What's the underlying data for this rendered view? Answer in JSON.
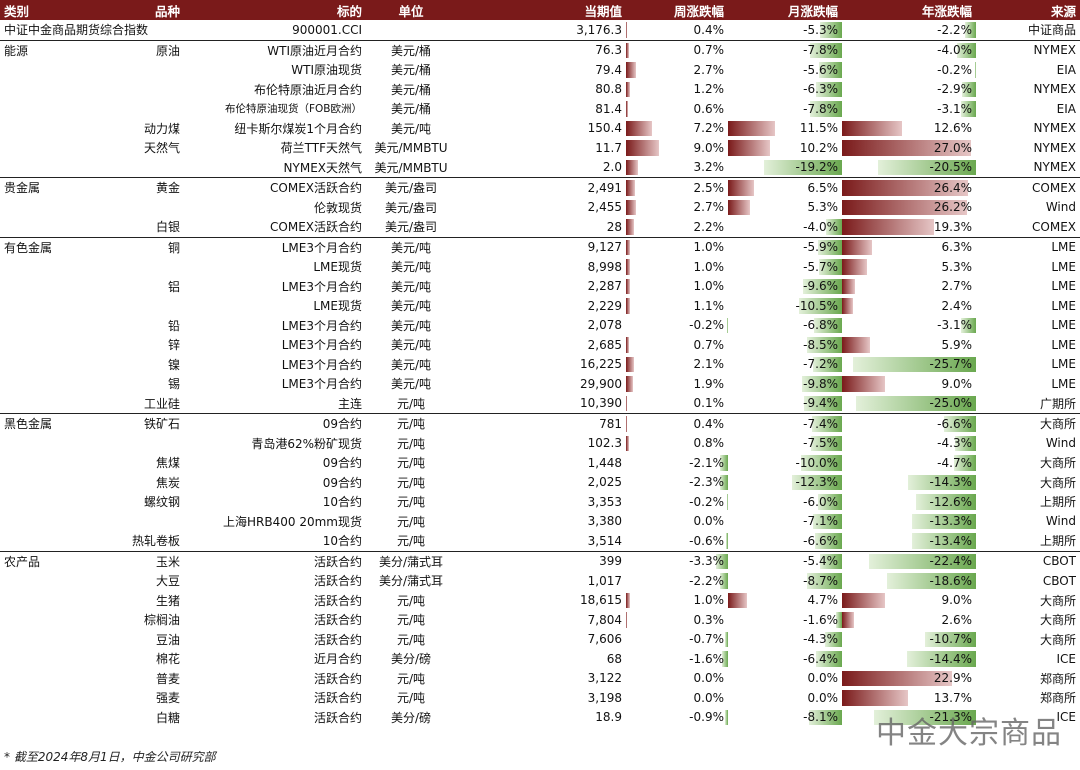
{
  "headers": {
    "category": "类别",
    "variety": "品种",
    "instrument": "标的",
    "unit": "单位",
    "current": "当期值",
    "weekly": "周涨跌幅",
    "monthly": "月涨跌幅",
    "yearly": "年涨跌幅",
    "source": "来源"
  },
  "colors": {
    "header_bg": "#7a1a1a",
    "positive_bar": "#7a1a1a",
    "negative_bar": "#6aa84f"
  },
  "rows": [
    {
      "cat": "中证中金商品期货综合指数",
      "var": "",
      "inst": "900001.CCI",
      "unit": "",
      "val": "3,176.3",
      "w": "0.4%",
      "m": "-5.3%",
      "y": "-2.2%",
      "src": "中证商品",
      "wn": 0.4,
      "mn": -5.3,
      "yn": -2.2
    },
    {
      "cat": "能源",
      "var": "原油",
      "inst": "WTI原油近月合约",
      "unit": "美元/桶",
      "val": "76.3",
      "w": "0.7%",
      "m": "-7.8%",
      "y": "-4.0%",
      "src": "NYMEX",
      "wn": 0.7,
      "mn": -7.8,
      "yn": -4.0
    },
    {
      "cat": "",
      "var": "",
      "inst": "WTI原油现货",
      "unit": "美元/桶",
      "val": "79.4",
      "w": "2.7%",
      "m": "-5.6%",
      "y": "-0.2%",
      "src": "EIA",
      "wn": 2.7,
      "mn": -5.6,
      "yn": -0.2
    },
    {
      "cat": "",
      "var": "",
      "inst": "布伦特原油近月合约",
      "unit": "美元/桶",
      "val": "80.8",
      "w": "1.2%",
      "m": "-6.3%",
      "y": "-2.9%",
      "src": "NYMEX",
      "wn": 1.2,
      "mn": -6.3,
      "yn": -2.9
    },
    {
      "cat": "",
      "var": "",
      "inst": "布伦特原油现货（FOB欧洲）",
      "unit": "美元/桶",
      "val": "81.4",
      "w": "0.6%",
      "m": "-7.8%",
      "y": "-3.1%",
      "src": "EIA",
      "wn": 0.6,
      "mn": -7.8,
      "yn": -3.1,
      "small": true
    },
    {
      "cat": "",
      "var": "动力煤",
      "inst": "纽卡斯尔煤炭1个月合约",
      "unit": "美元/吨",
      "val": "150.4",
      "w": "7.2%",
      "m": "11.5%",
      "y": "12.6%",
      "src": "NYMEX",
      "wn": 7.2,
      "mn": 11.5,
      "yn": 12.6
    },
    {
      "cat": "",
      "var": "天然气",
      "inst": "荷兰TTF天然气",
      "unit": "美元/MMBTU",
      "val": "11.7",
      "w": "9.0%",
      "m": "10.2%",
      "y": "27.0%",
      "src": "NYMEX",
      "wn": 9.0,
      "mn": 10.2,
      "yn": 27.0
    },
    {
      "cat": "",
      "var": "",
      "inst": "NYMEX天然气",
      "unit": "美元/MMBTU",
      "val": "2.0",
      "w": "3.2%",
      "m": "-19.2%",
      "y": "-20.5%",
      "src": "NYMEX",
      "wn": 3.2,
      "mn": -19.2,
      "yn": -20.5
    },
    {
      "cat": "贵金属",
      "var": "黄金",
      "inst": "COMEX活跃合约",
      "unit": "美元/盎司",
      "val": "2,491",
      "w": "2.5%",
      "m": "6.5%",
      "y": "26.4%",
      "src": "COMEX",
      "wn": 2.5,
      "mn": 6.5,
      "yn": 26.4,
      "grp": true
    },
    {
      "cat": "",
      "var": "",
      "inst": "伦敦现货",
      "unit": "美元/盎司",
      "val": "2,455",
      "w": "2.7%",
      "m": "5.3%",
      "y": "26.2%",
      "src": "Wind",
      "wn": 2.7,
      "mn": 5.3,
      "yn": 26.2
    },
    {
      "cat": "",
      "var": "白银",
      "inst": "COMEX活跃合约",
      "unit": "美元/盎司",
      "val": "28",
      "w": "2.2%",
      "m": "-4.0%",
      "y": "19.3%",
      "src": "COMEX",
      "wn": 2.2,
      "mn": -4.0,
      "yn": 19.3
    },
    {
      "cat": "有色金属",
      "var": "铜",
      "inst": "LME3个月合约",
      "unit": "美元/吨",
      "val": "9,127",
      "w": "1.0%",
      "m": "-5.9%",
      "y": "6.3%",
      "src": "LME",
      "wn": 1.0,
      "mn": -5.9,
      "yn": 6.3,
      "grp": true
    },
    {
      "cat": "",
      "var": "",
      "inst": "LME现货",
      "unit": "美元/吨",
      "val": "8,998",
      "w": "1.0%",
      "m": "-5.7%",
      "y": "5.3%",
      "src": "LME",
      "wn": 1.0,
      "mn": -5.7,
      "yn": 5.3
    },
    {
      "cat": "",
      "var": "铝",
      "inst": "LME3个月合约",
      "unit": "美元/吨",
      "val": "2,287",
      "w": "1.0%",
      "m": "-9.6%",
      "y": "2.7%",
      "src": "LME",
      "wn": 1.0,
      "mn": -9.6,
      "yn": 2.7
    },
    {
      "cat": "",
      "var": "",
      "inst": "LME现货",
      "unit": "美元/吨",
      "val": "2,229",
      "w": "1.1%",
      "m": "-10.5%",
      "y": "2.4%",
      "src": "LME",
      "wn": 1.1,
      "mn": -10.5,
      "yn": 2.4
    },
    {
      "cat": "",
      "var": "铅",
      "inst": "LME3个月合约",
      "unit": "美元/吨",
      "val": "2,078",
      "w": "-0.2%",
      "m": "-6.8%",
      "y": "-3.1%",
      "src": "LME",
      "wn": -0.2,
      "mn": -6.8,
      "yn": -3.1
    },
    {
      "cat": "",
      "var": "锌",
      "inst": "LME3个月合约",
      "unit": "美元/吨",
      "val": "2,685",
      "w": "0.7%",
      "m": "-8.5%",
      "y": "5.9%",
      "src": "LME",
      "wn": 0.7,
      "mn": -8.5,
      "yn": 5.9
    },
    {
      "cat": "",
      "var": "镍",
      "inst": "LME3个月合约",
      "unit": "美元/吨",
      "val": "16,225",
      "w": "2.1%",
      "m": "-7.2%",
      "y": "-25.7%",
      "src": "LME",
      "wn": 2.1,
      "mn": -7.2,
      "yn": -25.7
    },
    {
      "cat": "",
      "var": "锡",
      "inst": "LME3个月合约",
      "unit": "美元/吨",
      "val": "29,900",
      "w": "1.9%",
      "m": "-9.8%",
      "y": "9.0%",
      "src": "LME",
      "wn": 1.9,
      "mn": -9.8,
      "yn": 9.0
    },
    {
      "cat": "",
      "var": "工业硅",
      "inst": "主连",
      "unit": "元/吨",
      "val": "10,390",
      "w": "0.1%",
      "m": "-9.4%",
      "y": "-25.0%",
      "src": "广期所",
      "wn": 0.1,
      "mn": -9.4,
      "yn": -25.0
    },
    {
      "cat": "黑色金属",
      "var": "铁矿石",
      "inst": "09合约",
      "unit": "元/吨",
      "val": "781",
      "w": "0.4%",
      "m": "-7.4%",
      "y": "-6.6%",
      "src": "大商所",
      "wn": 0.4,
      "mn": -7.4,
      "yn": -6.6,
      "grp": true
    },
    {
      "cat": "",
      "var": "",
      "inst": "青岛港62%粉矿现货",
      "unit": "元/吨",
      "val": "102.3",
      "w": "0.8%",
      "m": "-7.5%",
      "y": "-4.3%",
      "src": "Wind",
      "wn": 0.8,
      "mn": -7.5,
      "yn": -4.3
    },
    {
      "cat": "",
      "var": "焦煤",
      "inst": "09合约",
      "unit": "元/吨",
      "val": "1,448",
      "w": "-2.1%",
      "m": "-10.0%",
      "y": "-4.7%",
      "src": "大商所",
      "wn": -2.1,
      "mn": -10.0,
      "yn": -4.7
    },
    {
      "cat": "",
      "var": "焦炭",
      "inst": "09合约",
      "unit": "元/吨",
      "val": "2,025",
      "w": "-2.3%",
      "m": "-12.3%",
      "y": "-14.3%",
      "src": "大商所",
      "wn": -2.3,
      "mn": -12.3,
      "yn": -14.3
    },
    {
      "cat": "",
      "var": "螺纹钢",
      "inst": "10合约",
      "unit": "元/吨",
      "val": "3,353",
      "w": "-0.2%",
      "m": "-6.0%",
      "y": "-12.6%",
      "src": "上期所",
      "wn": -0.2,
      "mn": -6.0,
      "yn": -12.6
    },
    {
      "cat": "",
      "var": "",
      "inst": "上海HRB400 20mm现货",
      "unit": "元/吨",
      "val": "3,380",
      "w": "0.0%",
      "m": "-7.1%",
      "y": "-13.3%",
      "src": "Wind",
      "wn": 0.0,
      "mn": -7.1,
      "yn": -13.3
    },
    {
      "cat": "",
      "var": "热轧卷板",
      "inst": "10合约",
      "unit": "元/吨",
      "val": "3,514",
      "w": "-0.6%",
      "m": "-6.6%",
      "y": "-13.4%",
      "src": "上期所",
      "wn": -0.6,
      "mn": -6.6,
      "yn": -13.4
    },
    {
      "cat": "农产品",
      "var": "玉米",
      "inst": "活跃合约",
      "unit": "美分/蒲式耳",
      "val": "399",
      "w": "-3.3%",
      "m": "-5.4%",
      "y": "-22.4%",
      "src": "CBOT",
      "wn": -3.3,
      "mn": -5.4,
      "yn": -22.4,
      "grp": true
    },
    {
      "cat": "",
      "var": "大豆",
      "inst": "活跃合约",
      "unit": "美分/蒲式耳",
      "val": "1,017",
      "w": "-2.2%",
      "m": "-8.7%",
      "y": "-18.6%",
      "src": "CBOT",
      "wn": -2.2,
      "mn": -8.7,
      "yn": -18.6
    },
    {
      "cat": "",
      "var": "生猪",
      "inst": "活跃合约",
      "unit": "元/吨",
      "val": "18,615",
      "w": "1.0%",
      "m": "4.7%",
      "y": "9.0%",
      "src": "大商所",
      "wn": 1.0,
      "mn": 4.7,
      "yn": 9.0
    },
    {
      "cat": "",
      "var": "棕榈油",
      "inst": "活跃合约",
      "unit": "元/吨",
      "val": "7,804",
      "w": "0.3%",
      "m": "-1.6%",
      "y": "2.6%",
      "src": "大商所",
      "wn": 0.3,
      "mn": -1.6,
      "yn": 2.6
    },
    {
      "cat": "",
      "var": "豆油",
      "inst": "活跃合约",
      "unit": "元/吨",
      "val": "7,606",
      "w": "-0.7%",
      "m": "-4.3%",
      "y": "-10.7%",
      "src": "大商所",
      "wn": -0.7,
      "mn": -4.3,
      "yn": -10.7
    },
    {
      "cat": "",
      "var": "棉花",
      "inst": "近月合约",
      "unit": "美分/磅",
      "val": "68",
      "w": "-1.6%",
      "m": "-6.4%",
      "y": "-14.4%",
      "src": "ICE",
      "wn": -1.6,
      "mn": -6.4,
      "yn": -14.4
    },
    {
      "cat": "",
      "var": "普麦",
      "inst": "活跃合约",
      "unit": "元/吨",
      "val": "3,122",
      "w": "0.0%",
      "m": "0.0%",
      "y": "22.9%",
      "src": "郑商所",
      "wn": 0.0,
      "mn": 0.0,
      "yn": 22.9
    },
    {
      "cat": "",
      "var": "强麦",
      "inst": "活跃合约",
      "unit": "元/吨",
      "val": "3,198",
      "w": "0.0%",
      "m": "0.0%",
      "y": "13.7%",
      "src": "郑商所",
      "wn": 0.0,
      "mn": 0.0,
      "yn": 13.7
    },
    {
      "cat": "",
      "var": "白糖",
      "inst": "活跃合约",
      "unit": "美分/磅",
      "val": "18.9",
      "w": "-0.9%",
      "m": "-8.1%",
      "y": "-21.3%",
      "src": "ICE",
      "wn": -0.9,
      "mn": -8.1,
      "yn": -21.3
    }
  ],
  "footnote": "* 截至2024年8月1日，中金公司研究部",
  "watermark": "中金大宗商品"
}
